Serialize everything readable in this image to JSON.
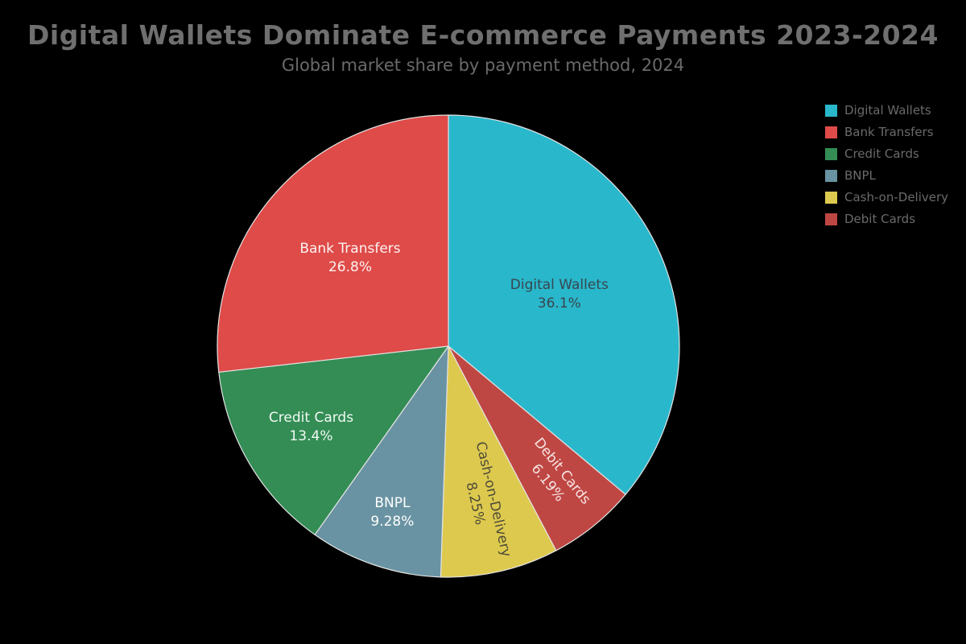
{
  "chart_data": {
    "type": "pie",
    "title": "Digital Wallets Dominate E-commerce Payments 2023-2024",
    "subtitle": "Global market share by payment method, 2024",
    "background_color": "#000000",
    "title_color": "#6f6f6f",
    "legend_position": "upper right",
    "start_angle": "top",
    "direction_note": "first slice sweeps clockwise from 12 o'clock",
    "clockwise_order": [
      0,
      5,
      4,
      3,
      2,
      1
    ],
    "slice_edge_color": "#e3e3e3",
    "slices": [
      {
        "name": "Digital Wallets",
        "value": 36.1,
        "percent_label": "36.1%",
        "color": "#29b7cb",
        "label_color": "#37474f",
        "label_distance": 0.53,
        "rotated": false
      },
      {
        "name": "Bank Transfers",
        "value": 26.8,
        "percent_label": "26.8%",
        "color": "#de4b48",
        "label_color": "#fdf3f3",
        "label_distance": 0.57,
        "rotated": false
      },
      {
        "name": "Credit Cards",
        "value": 13.4,
        "percent_label": "13.4%",
        "color": "#338d55",
        "label_color": "#f2faf4",
        "label_distance": 0.69,
        "rotated": false
      },
      {
        "name": "BNPL",
        "value": 9.28,
        "percent_label": "9.28%",
        "color": "#6993a2",
        "label_color": "#ffffff",
        "label_distance": 0.76,
        "rotated": false
      },
      {
        "name": "Cash-on-Delivery",
        "value": 8.25,
        "percent_label": "8.25%",
        "color": "#ddc94e",
        "label_color": "#4f4c38",
        "label_distance": 0.69,
        "rotated": true
      },
      {
        "name": "Debit Cards",
        "value": 6.19,
        "percent_label": "6.19%",
        "color": "#bf4743",
        "label_color": "#f6e4e3",
        "label_distance": 0.73,
        "rotated": true
      }
    ]
  }
}
